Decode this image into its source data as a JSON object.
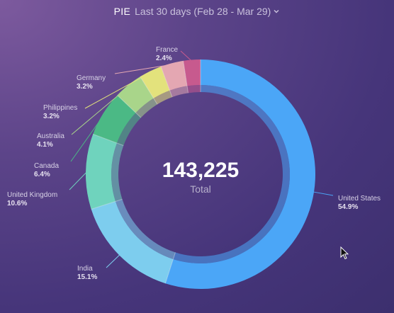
{
  "header": {
    "title": "PIE",
    "date_range": "Last 30 days (Feb 28 - Mar 29)",
    "chevron_icon": "chevron-down-icon"
  },
  "chart_data": {
    "type": "pie",
    "variant": "donut",
    "center_value": "143,225",
    "center_label": "Total",
    "slices": [
      {
        "name": "United States",
        "percent": 54.9,
        "label": "54.9%",
        "color": "#4ba6f7"
      },
      {
        "name": "India",
        "percent": 15.1,
        "label": "15.1%",
        "color": "#7dcdee"
      },
      {
        "name": "United Kingdom",
        "percent": 10.6,
        "label": "10.6%",
        "color": "#6fd3bd"
      },
      {
        "name": "Canada",
        "percent": 6.4,
        "label": "6.4%",
        "color": "#4bb985"
      },
      {
        "name": "Australia",
        "percent": 4.1,
        "label": "4.1%",
        "color": "#a9d58a"
      },
      {
        "name": "Philippines",
        "percent": 3.2,
        "label": "3.2%",
        "color": "#e3e27c"
      },
      {
        "name": "Germany",
        "percent": 3.2,
        "label": "3.2%",
        "color": "#e4a7b2"
      },
      {
        "name": "France",
        "percent": 2.4,
        "label": "2.4%",
        "color": "#c75a8e"
      }
    ]
  }
}
